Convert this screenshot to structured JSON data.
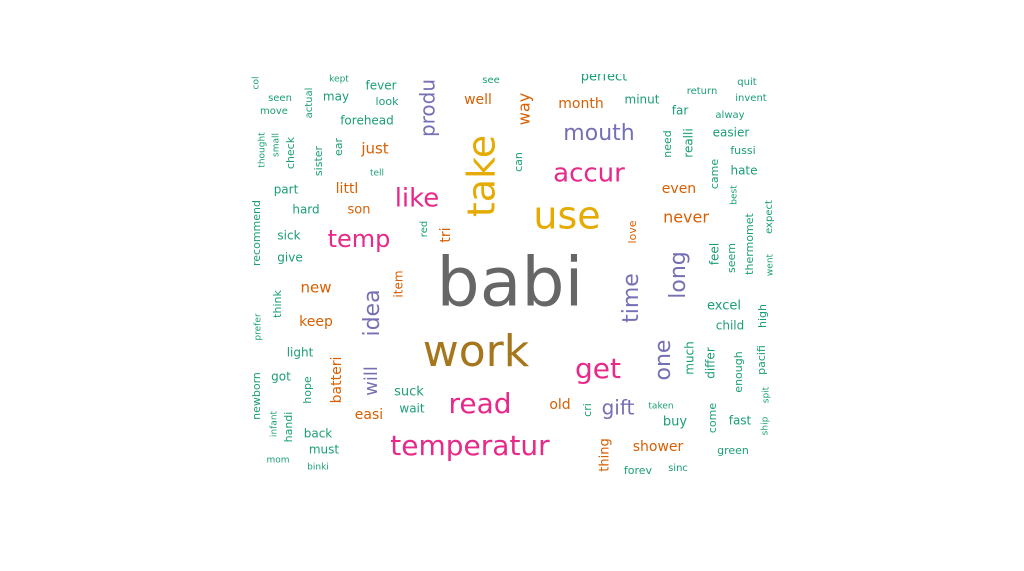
{
  "colors": {
    "green": "#1b9e77",
    "orange": "#d95f02",
    "purple": "#7570b3",
    "magenta": "#e7298a",
    "olive": "#66a61e",
    "gold": "#e6ab02",
    "brown": "#a6761d",
    "gray": "#666666"
  },
  "chart_data": {
    "type": "wordcloud",
    "title": "",
    "words": [
      {
        "text": "babi",
        "color": "gray",
        "weight": 10
      },
      {
        "text": "work",
        "color": "brown",
        "weight": 7.5
      },
      {
        "text": "use",
        "color": "gold",
        "weight": 6.2
      },
      {
        "text": "take",
        "color": "gold",
        "weight": 6.2
      },
      {
        "text": "read",
        "color": "magenta",
        "weight": 4.5
      },
      {
        "text": "temperatur",
        "color": "magenta",
        "weight": 4.5
      },
      {
        "text": "accur",
        "color": "magenta",
        "weight": 4.3
      },
      {
        "text": "get",
        "color": "magenta",
        "weight": 4.3
      },
      {
        "text": "temp",
        "color": "magenta",
        "weight": 4.0
      },
      {
        "text": "like",
        "color": "magenta",
        "weight": 4.0
      },
      {
        "text": "mouth",
        "color": "purple",
        "weight": 3.5
      },
      {
        "text": "time",
        "color": "purple",
        "weight": 3.3
      },
      {
        "text": "long",
        "color": "purple",
        "weight": 3.3
      },
      {
        "text": "one",
        "color": "purple",
        "weight": 3.3
      },
      {
        "text": "idea",
        "color": "purple",
        "weight": 3.2
      },
      {
        "text": "produ",
        "color": "purple",
        "weight": 3.2
      },
      {
        "text": "gift",
        "color": "purple",
        "weight": 3.0
      },
      {
        "text": "will",
        "color": "purple",
        "weight": 2.8
      },
      {
        "text": "never",
        "color": "orange",
        "weight": 2.3
      },
      {
        "text": "way",
        "color": "orange",
        "weight": 2.2
      },
      {
        "text": "new",
        "color": "orange",
        "weight": 2.1
      },
      {
        "text": "keep",
        "color": "orange",
        "weight": 2.0
      },
      {
        "text": "just",
        "color": "orange",
        "weight": 2.0
      },
      {
        "text": "well",
        "color": "orange",
        "weight": 2.0
      },
      {
        "text": "month",
        "color": "orange",
        "weight": 2.0
      },
      {
        "text": "easi",
        "color": "orange",
        "weight": 2.0
      },
      {
        "text": "shower",
        "color": "orange",
        "weight": 1.9
      },
      {
        "text": "even",
        "color": "orange",
        "weight": 1.9
      },
      {
        "text": "tri",
        "color": "orange",
        "weight": 1.9
      },
      {
        "text": "littl",
        "color": "orange",
        "weight": 1.9
      },
      {
        "text": "batteri",
        "color": "orange",
        "weight": 1.9
      },
      {
        "text": "son",
        "color": "orange",
        "weight": 1.8
      },
      {
        "text": "thing",
        "color": "orange",
        "weight": 1.8
      },
      {
        "text": "old",
        "color": "orange",
        "weight": 1.8
      },
      {
        "text": "item",
        "color": "orange",
        "weight": 1.7
      },
      {
        "text": "love",
        "color": "orange",
        "weight": 1.5
      },
      {
        "text": "excel",
        "color": "green",
        "weight": 1.7
      },
      {
        "text": "suck",
        "color": "green",
        "weight": 1.7
      },
      {
        "text": "buy",
        "color": "green",
        "weight": 1.7
      },
      {
        "text": "minut",
        "color": "green",
        "weight": 1.6
      },
      {
        "text": "hate",
        "color": "green",
        "weight": 1.6
      },
      {
        "text": "back",
        "color": "green",
        "weight": 1.6
      },
      {
        "text": "kid",
        "color": "green",
        "weight": 1.6
      },
      {
        "text": "must",
        "color": "green",
        "weight": 1.6
      },
      {
        "text": "fever",
        "color": "green",
        "weight": 1.6
      },
      {
        "text": "forehead",
        "color": "green",
        "weight": 1.6
      },
      {
        "text": "easier",
        "color": "green",
        "weight": 1.5
      },
      {
        "text": "light",
        "color": "green",
        "weight": 1.5
      },
      {
        "text": "sick",
        "color": "green",
        "weight": 1.5
      },
      {
        "text": "part",
        "color": "green",
        "weight": 1.5
      },
      {
        "text": "much",
        "color": "green",
        "weight": 1.5
      },
      {
        "text": "child",
        "color": "green",
        "weight": 1.5
      },
      {
        "text": "fast",
        "color": "green",
        "weight": 1.5
      },
      {
        "text": "differ",
        "color": "green",
        "weight": 1.5
      },
      {
        "text": "hard",
        "color": "green",
        "weight": 1.4
      },
      {
        "text": "far",
        "color": "green",
        "weight": 1.4
      },
      {
        "text": "may",
        "color": "green",
        "weight": 1.4
      },
      {
        "text": "wait",
        "color": "green",
        "weight": 1.4
      },
      {
        "text": "got",
        "color": "green",
        "weight": 1.4
      },
      {
        "text": "give",
        "color": "green",
        "weight": 1.4
      },
      {
        "text": "look",
        "color": "green",
        "weight": 1.4
      },
      {
        "text": "feel",
        "color": "green",
        "weight": 1.4
      },
      {
        "text": "seem",
        "color": "green",
        "weight": 1.4
      },
      {
        "text": "enough",
        "color": "green",
        "weight": 1.4
      },
      {
        "text": "high",
        "color": "green",
        "weight": 1.3
      },
      {
        "text": "thermomet",
        "color": "green",
        "weight": 1.3
      },
      {
        "text": "realli",
        "color": "green",
        "weight": 1.4
      },
      {
        "text": "need",
        "color": "green",
        "weight": 1.3
      },
      {
        "text": "came",
        "color": "green",
        "weight": 1.3
      },
      {
        "text": "come",
        "color": "green",
        "weight": 1.3
      },
      {
        "text": "cri",
        "color": "green",
        "weight": 1.3
      },
      {
        "text": "can",
        "color": "green",
        "weight": 1.3
      },
      {
        "text": "hope",
        "color": "green",
        "weight": 1.3
      },
      {
        "text": "handi",
        "color": "green",
        "weight": 1.3
      },
      {
        "text": "think",
        "color": "green",
        "weight": 1.3
      },
      {
        "text": "check",
        "color": "green",
        "weight": 1.3
      },
      {
        "text": "sister",
        "color": "green",
        "weight": 1.3
      },
      {
        "text": "recommend",
        "color": "green",
        "weight": 1.3
      },
      {
        "text": "newborn",
        "color": "green",
        "weight": 1.3
      },
      {
        "text": "pacifi",
        "color": "green",
        "weight": 1.3
      },
      {
        "text": "fussi",
        "color": "green",
        "weight": 1.3
      },
      {
        "text": "green",
        "color": "green",
        "weight": 1.2
      },
      {
        "text": "ear",
        "color": "green",
        "weight": 1.2
      },
      {
        "text": "perfect",
        "color": "green",
        "weight": 1.5
      },
      {
        "text": "forev",
        "color": "green",
        "weight": 1.3
      },
      {
        "text": "alway",
        "color": "green",
        "weight": 1.2
      },
      {
        "text": "return",
        "color": "green",
        "weight": 1.1
      },
      {
        "text": "invent",
        "color": "green",
        "weight": 1.1
      },
      {
        "text": "quit",
        "color": "green",
        "weight": 1.1
      },
      {
        "text": "seen",
        "color": "green",
        "weight": 1.1
      },
      {
        "text": "move",
        "color": "green",
        "weight": 1.1
      },
      {
        "text": "actual",
        "color": "green",
        "weight": 1.1
      },
      {
        "text": "see",
        "color": "green",
        "weight": 1.1
      },
      {
        "text": "red",
        "color": "green",
        "weight": 1.1
      },
      {
        "text": "expect",
        "color": "green",
        "weight": 1.1
      },
      {
        "text": "went",
        "color": "green",
        "weight": 1.0
      },
      {
        "text": "sinc",
        "color": "green",
        "weight": 1.1
      },
      {
        "text": "taken",
        "color": "green",
        "weight": 1.0
      },
      {
        "text": "spit",
        "color": "green",
        "weight": 1.0
      },
      {
        "text": "ship",
        "color": "green",
        "weight": 1.0
      },
      {
        "text": "thought",
        "color": "green",
        "weight": 1.0
      },
      {
        "text": "small",
        "color": "green",
        "weight": 1.0
      },
      {
        "text": "tell",
        "color": "green",
        "weight": 1.0
      },
      {
        "text": "best",
        "color": "green",
        "weight": 1.0
      },
      {
        "text": "prefer",
        "color": "green",
        "weight": 1.0
      },
      {
        "text": "infant",
        "color": "green",
        "weight": 1.0
      },
      {
        "text": "mom",
        "color": "green",
        "weight": 1.0
      },
      {
        "text": "binki",
        "color": "green",
        "weight": 1.0
      },
      {
        "text": "kept",
        "color": "green",
        "weight": 1.0
      },
      {
        "text": "col",
        "color": "green",
        "weight": 1.0
      }
    ]
  }
}
